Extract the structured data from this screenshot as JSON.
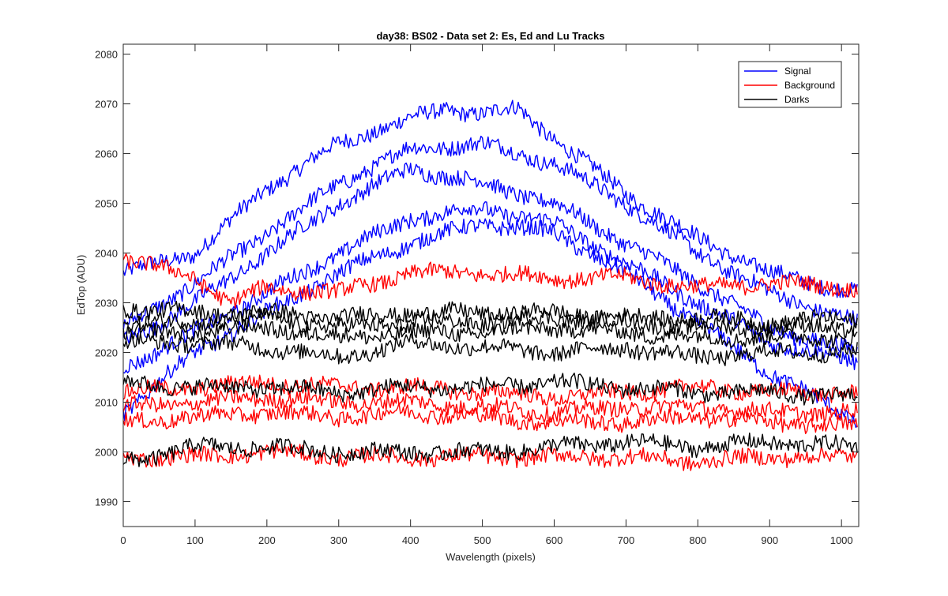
{
  "chart_data": {
    "type": "line",
    "title": "day38: BS02 - Data set 2: Es, Ed and Lu Tracks",
    "xlabel": "Wavelength (pixels)",
    "ylabel": "EdTop (ADU)",
    "xlim": [
      0,
      1024
    ],
    "ylim": [
      1985,
      2082
    ],
    "xticks": [
      0,
      100,
      200,
      300,
      400,
      500,
      600,
      700,
      800,
      900,
      1000
    ],
    "yticks": [
      1990,
      2000,
      2010,
      2020,
      2030,
      2040,
      2050,
      2060,
      2070,
      2080
    ],
    "grid": false,
    "legend_position": "top-right",
    "legend": [
      {
        "label": "Signal",
        "color": "#0000ff"
      },
      {
        "label": "Background",
        "color": "#ff0000"
      },
      {
        "label": "Darks",
        "color": "#000000"
      }
    ],
    "series": [
      {
        "group": "Signal",
        "color": "#0000ff",
        "x": [
          0,
          100,
          200,
          300,
          400,
          450,
          500,
          550,
          600,
          700,
          800,
          900,
          1024
        ],
        "y": [
          2036,
          2040,
          2053,
          2062,
          2067,
          2069,
          2068,
          2069,
          2063,
          2052,
          2043,
          2036,
          2032
        ]
      },
      {
        "group": "Signal",
        "color": "#0000ff",
        "x": [
          0,
          100,
          200,
          300,
          400,
          500,
          600,
          700,
          800,
          900,
          1024
        ],
        "y": [
          2025,
          2034,
          2044,
          2054,
          2061,
          2062,
          2058,
          2050,
          2040,
          2032,
          2026
        ]
      },
      {
        "group": "Signal",
        "color": "#0000ff",
        "x": [
          0,
          100,
          200,
          300,
          400,
          500,
          600,
          700,
          800,
          900,
          1024
        ],
        "y": [
          2022,
          2030,
          2040,
          2050,
          2057,
          2054,
          2050,
          2042,
          2034,
          2025,
          2020
        ]
      },
      {
        "group": "Signal",
        "color": "#0000ff",
        "x": [
          0,
          100,
          200,
          300,
          400,
          500,
          600,
          700,
          800,
          900,
          1024
        ],
        "y": [
          2017,
          2024,
          2032,
          2040,
          2047,
          2049,
          2046,
          2038,
          2030,
          2022,
          2018
        ]
      },
      {
        "group": "Signal",
        "color": "#0000ff",
        "x": [
          0,
          100,
          200,
          300,
          400,
          500,
          600,
          700,
          800,
          900,
          1024
        ],
        "y": [
          2008,
          2020,
          2028,
          2036,
          2042,
          2046,
          2044,
          2036,
          2026,
          2016,
          2006
        ]
      },
      {
        "group": "Background",
        "color": "#ff0000",
        "x": [
          0,
          100,
          150,
          200,
          300,
          400,
          500,
          600,
          700,
          800,
          900,
          1024
        ],
        "y": [
          2039,
          2035,
          2030,
          2033,
          2032,
          2036,
          2036,
          2035,
          2035,
          2033,
          2034,
          2033
        ]
      },
      {
        "group": "Background",
        "color": "#ff0000",
        "x": [
          0,
          100,
          200,
          300,
          400,
          500,
          600,
          700,
          800,
          900,
          1024
        ],
        "y": [
          2012,
          2013,
          2014,
          2013,
          2013,
          2012,
          2011,
          2012,
          2013,
          2012,
          2012
        ]
      },
      {
        "group": "Background",
        "color": "#ff0000",
        "x": [
          0,
          100,
          200,
          300,
          400,
          500,
          600,
          700,
          800,
          900,
          1024
        ],
        "y": [
          2009,
          2010,
          2011,
          2010,
          2010,
          2009,
          2008,
          2009,
          2009,
          2008,
          2008
        ]
      },
      {
        "group": "Background",
        "color": "#ff0000",
        "x": [
          0,
          100,
          200,
          300,
          400,
          500,
          600,
          700,
          800,
          900,
          1024
        ],
        "y": [
          2006,
          2007,
          2008,
          2007,
          2008,
          2007,
          2006,
          2006,
          2007,
          2006,
          2005
        ]
      },
      {
        "group": "Background",
        "color": "#ff0000",
        "x": [
          0,
          100,
          200,
          300,
          400,
          500,
          600,
          700,
          800,
          900,
          1024
        ],
        "y": [
          1999,
          1999,
          2000,
          1999,
          1999,
          1999,
          1999,
          1999,
          1998,
          1999,
          1999
        ]
      },
      {
        "group": "Darks",
        "color": "#000000",
        "x": [
          0,
          100,
          200,
          300,
          400,
          500,
          600,
          700,
          800,
          900,
          1024
        ],
        "y": [
          2029,
          2028,
          2028,
          2027,
          2028,
          2028,
          2028,
          2027,
          2027,
          2026,
          2027
        ]
      },
      {
        "group": "Darks",
        "color": "#000000",
        "x": [
          0,
          100,
          200,
          300,
          400,
          500,
          600,
          700,
          800,
          900,
          1024
        ],
        "y": [
          2026,
          2026,
          2027,
          2025,
          2026,
          2026,
          2027,
          2026,
          2025,
          2025,
          2025
        ]
      },
      {
        "group": "Darks",
        "color": "#000000",
        "x": [
          0,
          100,
          200,
          300,
          400,
          500,
          600,
          700,
          800,
          900,
          1024
        ],
        "y": [
          2024,
          2024,
          2025,
          2023,
          2024,
          2024,
          2025,
          2024,
          2023,
          2023,
          2023
        ]
      },
      {
        "group": "Darks",
        "color": "#000000",
        "x": [
          0,
          100,
          200,
          300,
          400,
          500,
          600,
          700,
          800,
          900,
          1024
        ],
        "y": [
          2022,
          2022,
          2021,
          2019,
          2022,
          2021,
          2020,
          2021,
          2019,
          2020,
          2020
        ]
      },
      {
        "group": "Darks",
        "color": "#000000",
        "x": [
          0,
          100,
          200,
          300,
          400,
          500,
          600,
          700,
          800,
          900,
          1024
        ],
        "y": [
          2014,
          2013,
          2013,
          2012,
          2013,
          2013,
          2014,
          2013,
          2012,
          2012,
          2011
        ]
      },
      {
        "group": "Darks",
        "color": "#000000",
        "x": [
          0,
          100,
          200,
          300,
          400,
          500,
          600,
          700,
          800,
          900,
          1024
        ],
        "y": [
          1998,
          2001,
          2001,
          2000,
          2000,
          2000,
          2001,
          2002,
          2001,
          2002,
          2001
        ]
      }
    ]
  }
}
